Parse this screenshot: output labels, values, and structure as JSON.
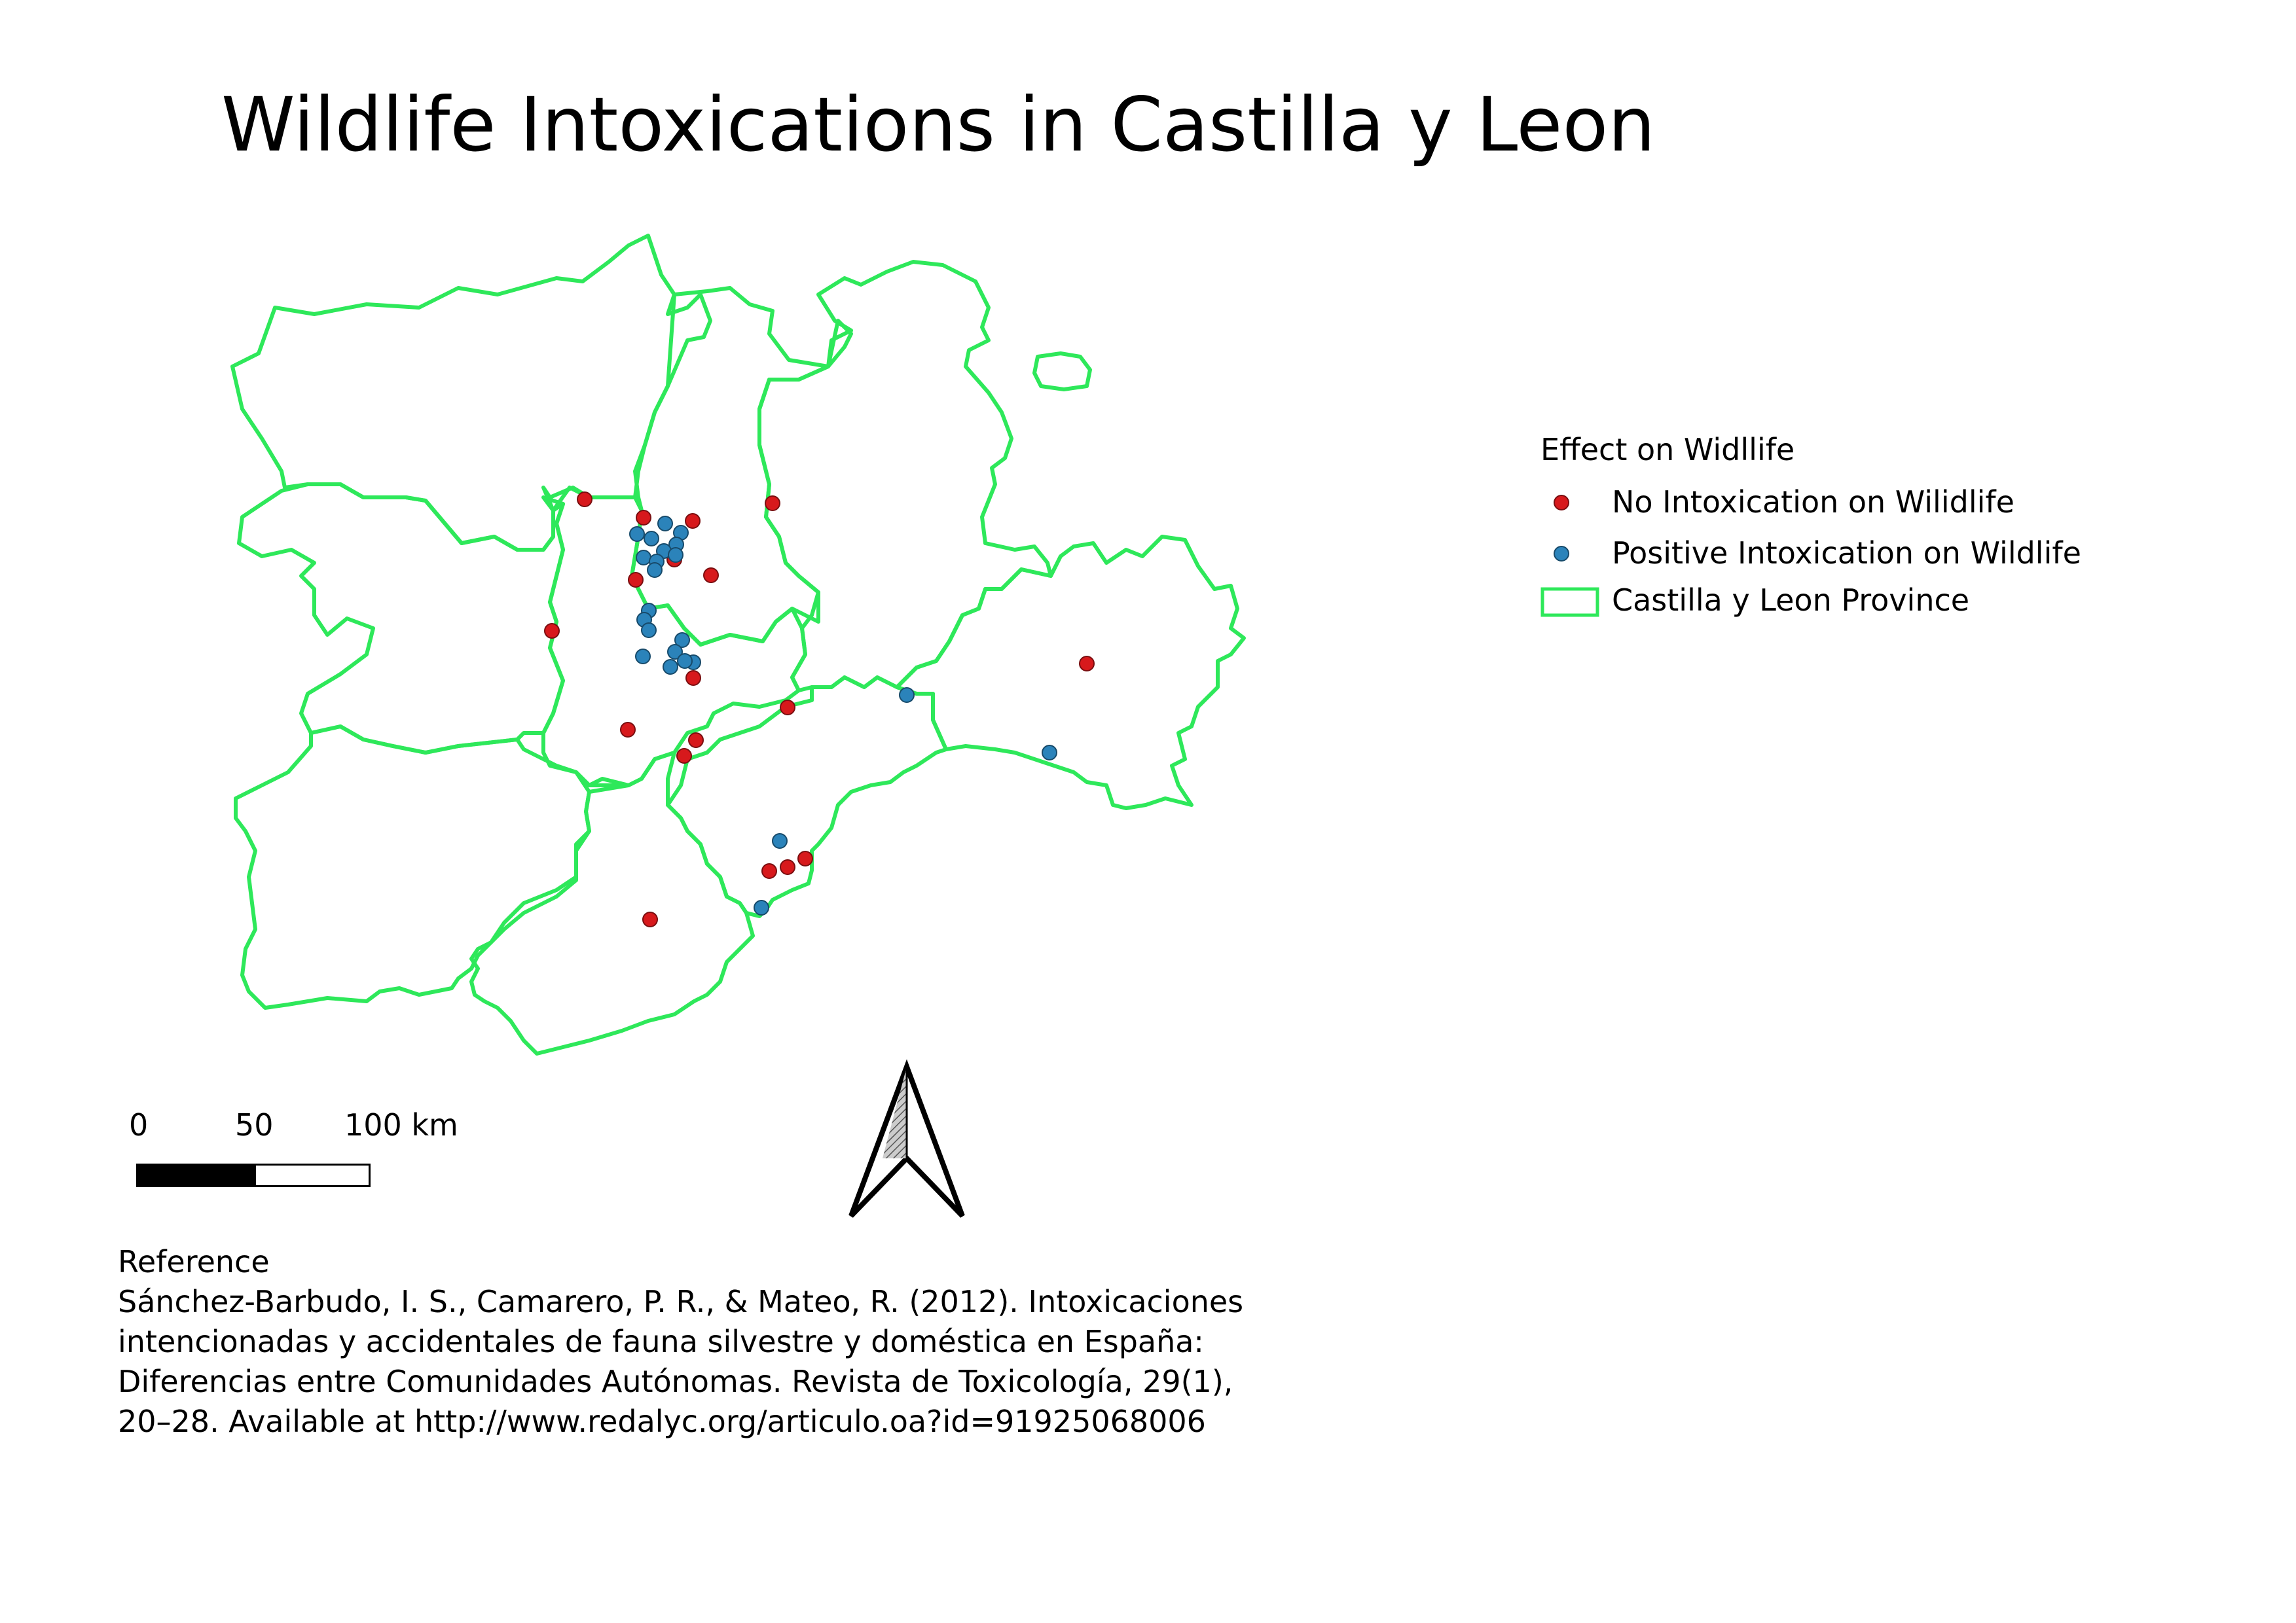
{
  "title": "Wildlife Intoxications in Castilla y Leon",
  "legend": {
    "title": "Effect on Widllife",
    "items": [
      {
        "label": "No Intoxication on Wilidlife",
        "symbol": "circle",
        "color": "#d7191c"
      },
      {
        "label": "Positive Intoxication on Wildlife",
        "symbol": "circle",
        "color": "#2b83ba"
      },
      {
        "label": "Castilla y Leon Province",
        "symbol": "polygon-outline",
        "color": "#2ee85a"
      }
    ]
  },
  "scale_bar": {
    "labels": [
      "0",
      "50",
      "100 km"
    ]
  },
  "north_arrow": {
    "icon": "north-arrow-icon"
  },
  "reference": {
    "heading": "Reference",
    "lines": [
      "Sánchez-Barbudo, I. S., Camarero, P. R., & Mateo, R. (2012). Intoxicaciones",
      "intencionadas y accidentales de fauna silvestre y doméstica en España:",
      "Diferencias entre Comunidades Autónomas. Revista de Toxicología, 29(1),",
      "20–28. Available at http://www.redalyc.org/articulo.oa?id=91925068006"
    ]
  },
  "colors": {
    "province_outline": "#2ee85a",
    "no_intoxication": "#d7191c",
    "positive_intoxication": "#2b83ba"
  }
}
